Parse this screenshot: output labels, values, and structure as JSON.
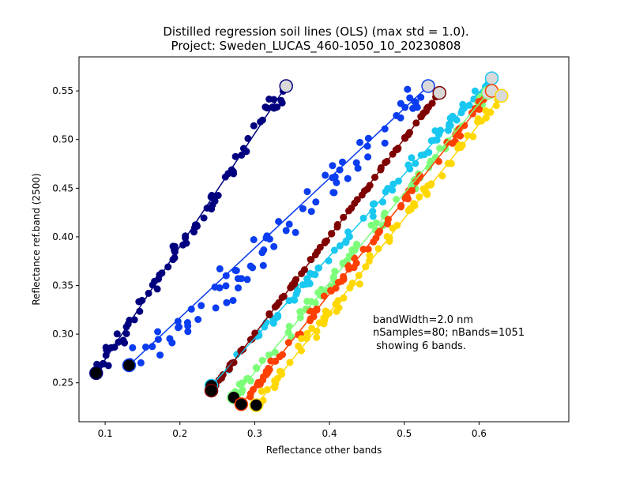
{
  "chart_data": {
    "type": "scatter",
    "title": "Distilled regression soil lines (OLS) (max std = 1.0).",
    "subtitle": "Project: Sweden_LUCAS_460-1050_10_20230808",
    "xlabel": "Reflectance other bands",
    "ylabel": "Reflectance ref.band (2500)",
    "xlim": [
      0.065,
      0.72
    ],
    "ylim": [
      0.21,
      0.585
    ],
    "xticks": [
      "0.1",
      "0.2",
      "0.3",
      "0.4",
      "0.5",
      "0.6"
    ],
    "yticks": [
      "0.25",
      "0.30",
      "0.35",
      "0.40",
      "0.45",
      "0.50",
      "0.55"
    ],
    "grid": false,
    "annotation": [
      "bandWidth=2.0 nm",
      "nSamples=80; nBands=1051",
      " showing 6 bands."
    ],
    "series": [
      {
        "color": "#00007f",
        "start": [
          0.088,
          0.26
        ],
        "end": [
          0.342,
          0.555
        ],
        "scatter": 0.018,
        "bias": 0.0,
        "spread": 0.0
      },
      {
        "color": "#0a3cf0",
        "start": [
          0.132,
          0.268
        ],
        "end": [
          0.532,
          0.555
        ],
        "scatter": 0.03,
        "bias": -0.012,
        "spread": 0.0
      },
      {
        "color": "#19c8f0",
        "start": [
          0.242,
          0.247
        ],
        "end": [
          0.617,
          0.563
        ],
        "scatter": 0.01,
        "bias": 0.0,
        "spread": 0.0
      },
      {
        "color": "#7f0000",
        "start": [
          0.242,
          0.242
        ],
        "end": [
          0.547,
          0.548
        ],
        "scatter": 0.003,
        "bias": 0.0,
        "spread": 0.0
      },
      {
        "color": "#7dff7a",
        "start": [
          0.272,
          0.235
        ],
        "end": [
          0.612,
          0.548
        ],
        "scatter": 0.01,
        "bias": 0.0,
        "spread": 0.0
      },
      {
        "color": "#ff4000",
        "start": [
          0.282,
          0.228
        ],
        "end": [
          0.617,
          0.55
        ],
        "scatter": 0.01,
        "bias": 0.0,
        "spread": 0.0
      },
      {
        "color": "#ffd800",
        "start": [
          0.302,
          0.227
        ],
        "end": [
          0.63,
          0.545
        ],
        "scatter": 0.012,
        "bias": 0.0,
        "spread": 0.0
      }
    ]
  }
}
